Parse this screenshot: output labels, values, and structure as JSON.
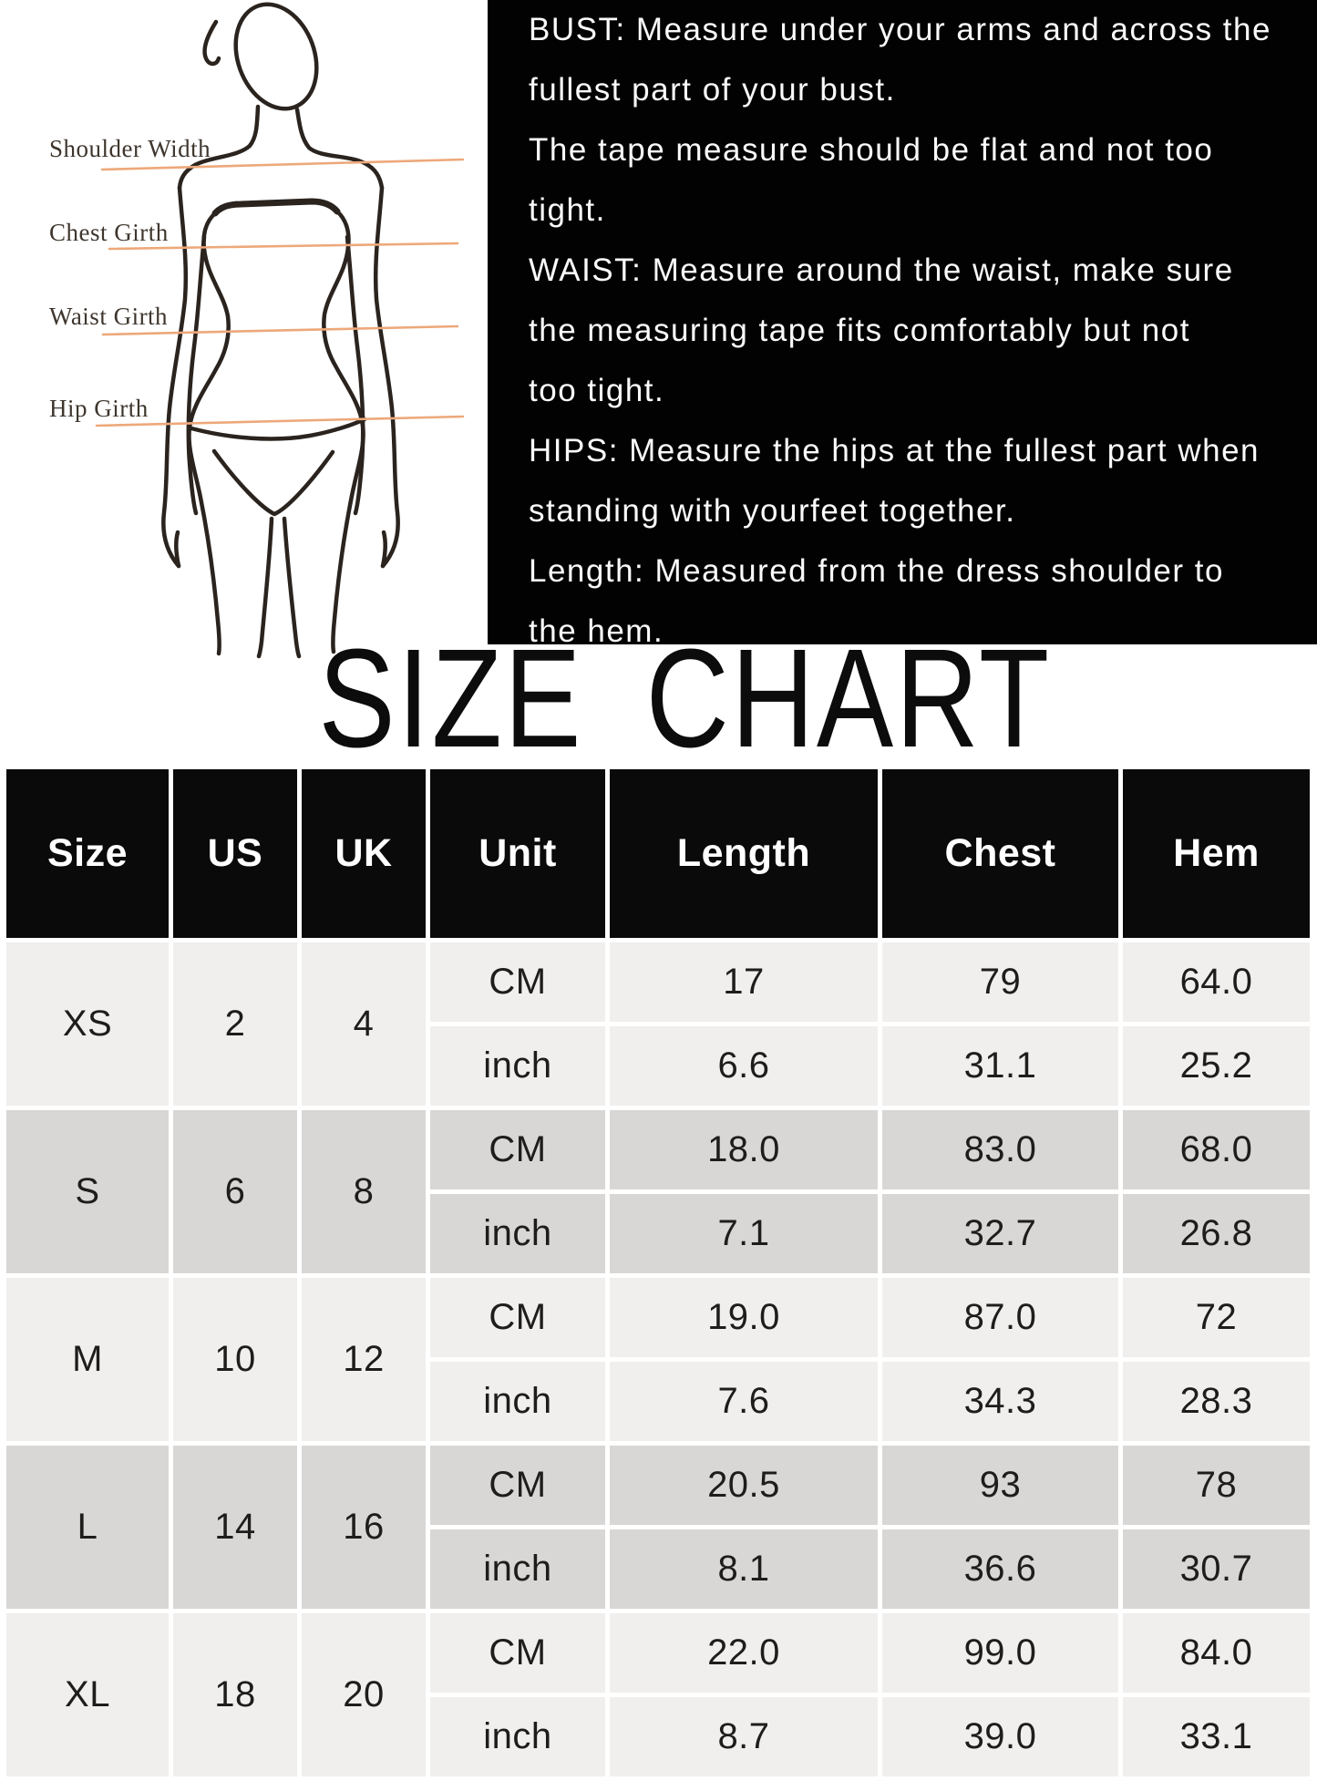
{
  "title": "SIZE CHART",
  "figure": {
    "labels": [
      "Shoulder Width",
      "Chest Girth",
      "Waist Girth",
      "Hip Girth"
    ]
  },
  "instructions": {
    "lines": [
      "BUST: Measure under your arms and across the",
      "fullest part of your bust.",
      "The tape measure should be flat and not too",
      "tight.",
      "WAIST: Measure around the waist, make sure",
      "the measuring tape fits comfortably but not",
      "too tight.",
      "HIPS: Measure the hips at the fullest part when",
      "standing with yourfeet together.",
      "Length: Measured from the dress shoulder to",
      "the hem."
    ]
  },
  "table": {
    "headers": [
      "Size",
      "US",
      "UK",
      "Unit",
      "Length",
      "Chest",
      "Hem"
    ],
    "unit_labels": [
      "CM",
      "inch"
    ],
    "rows": [
      {
        "size": "XS",
        "us": "2",
        "uk": "4",
        "cm": [
          "17",
          "79",
          "64.0"
        ],
        "inch": [
          "6.6",
          "31.1",
          "25.2"
        ]
      },
      {
        "size": "S",
        "us": "6",
        "uk": "8",
        "cm": [
          "18.0",
          "83.0",
          "68.0"
        ],
        "inch": [
          "7.1",
          "32.7",
          "26.8"
        ]
      },
      {
        "size": "M",
        "us": "10",
        "uk": "12",
        "cm": [
          "19.0",
          "87.0",
          "72"
        ],
        "inch": [
          "7.6",
          "34.3",
          "28.3"
        ]
      },
      {
        "size": "L",
        "us": "14",
        "uk": "16",
        "cm": [
          "20.5",
          "93",
          "78"
        ],
        "inch": [
          "8.1",
          "36.6",
          "30.7"
        ]
      },
      {
        "size": "XL",
        "us": "18",
        "uk": "20",
        "cm": [
          "22.0",
          "99.0",
          "84.0"
        ],
        "inch": [
          "8.7",
          "39.0",
          "33.1"
        ]
      }
    ]
  },
  "chart_data": {
    "type": "table",
    "title": "SIZE CHART",
    "columns": [
      "Size",
      "US",
      "UK",
      "Unit",
      "Length",
      "Chest",
      "Hem"
    ],
    "rows": [
      [
        "XS",
        "2",
        "4",
        "CM",
        "17",
        "79",
        "64.0"
      ],
      [
        "XS",
        "2",
        "4",
        "inch",
        "6.6",
        "31.1",
        "25.2"
      ],
      [
        "S",
        "6",
        "8",
        "CM",
        "18.0",
        "83.0",
        "68.0"
      ],
      [
        "S",
        "6",
        "8",
        "inch",
        "7.1",
        "32.7",
        "26.8"
      ],
      [
        "M",
        "10",
        "12",
        "CM",
        "19.0",
        "87.0",
        "72"
      ],
      [
        "M",
        "10",
        "12",
        "inch",
        "7.6",
        "34.3",
        "28.3"
      ],
      [
        "L",
        "14",
        "16",
        "CM",
        "20.5",
        "93",
        "78"
      ],
      [
        "L",
        "14",
        "16",
        "inch",
        "8.1",
        "36.6",
        "30.7"
      ],
      [
        "XL",
        "18",
        "20",
        "CM",
        "22.0",
        "99.0",
        "84.0"
      ],
      [
        "XL",
        "18",
        "20",
        "inch",
        "8.7",
        "39.0",
        "33.1"
      ]
    ]
  },
  "colors": {
    "accent_line": "#eda87a",
    "sketch_stroke": "#2a231e",
    "header_bg": "#0a0a0a",
    "row_light": "#f0efed",
    "row_dark": "#d9d7d5",
    "instructions_bg": "#020202",
    "instructions_text": "#fafafa"
  }
}
